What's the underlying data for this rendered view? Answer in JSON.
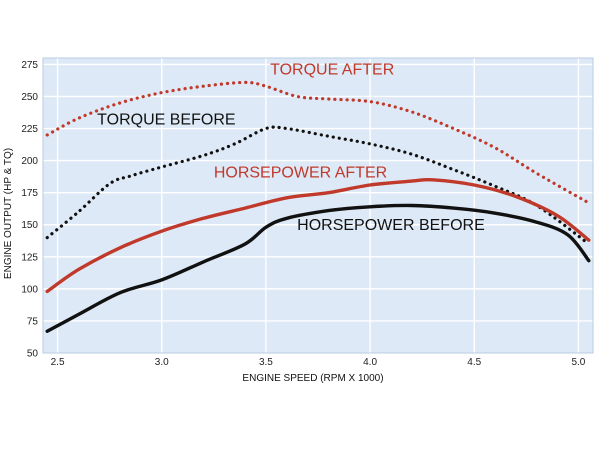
{
  "chart_data": {
    "type": "line",
    "xlabel": "ENGINE SPEED (RPM X 1000)",
    "ylabel": "ENGINE OUTPUT (HP & TQ)",
    "xlim": [
      2.43,
      5.07
    ],
    "ylim": [
      50,
      280
    ],
    "xticks": [
      2.5,
      3.0,
      3.5,
      4.0,
      4.5,
      5.0
    ],
    "xtick_labels": [
      "2.5",
      "3.0",
      "3.5",
      "4.0",
      "4.5",
      "5.0"
    ],
    "yticks": [
      50,
      75,
      100,
      125,
      150,
      175,
      200,
      225,
      250,
      275
    ],
    "ytick_labels": [
      "50",
      "75",
      "100",
      "125",
      "150",
      "175",
      "200",
      "225",
      "250",
      "275"
    ],
    "grid": true,
    "background": "#dde9f6",
    "series": [
      {
        "name": "TORQUE AFTER",
        "color": "#c0392b",
        "style": "dotted",
        "points": [
          [
            2.45,
            220
          ],
          [
            2.6,
            233
          ],
          [
            2.8,
            245
          ],
          [
            3.0,
            253
          ],
          [
            3.2,
            258
          ],
          [
            3.4,
            261
          ],
          [
            3.5,
            258
          ],
          [
            3.65,
            250
          ],
          [
            3.8,
            248
          ],
          [
            4.0,
            246
          ],
          [
            4.2,
            238
          ],
          [
            4.4,
            225
          ],
          [
            4.6,
            210
          ],
          [
            4.8,
            190
          ],
          [
            5.05,
            167
          ]
        ]
      },
      {
        "name": "TORQUE BEFORE",
        "color": "#111111",
        "style": "dotted",
        "points": [
          [
            2.45,
            140
          ],
          [
            2.6,
            160
          ],
          [
            2.75,
            182
          ],
          [
            2.85,
            188
          ],
          [
            3.0,
            195
          ],
          [
            3.2,
            204
          ],
          [
            3.35,
            213
          ],
          [
            3.5,
            225
          ],
          [
            3.6,
            225
          ],
          [
            3.8,
            219
          ],
          [
            4.0,
            213
          ],
          [
            4.2,
            205
          ],
          [
            4.4,
            193
          ],
          [
            4.6,
            180
          ],
          [
            4.8,
            165
          ],
          [
            5.05,
            135
          ]
        ]
      },
      {
        "name": "HORSEPOWER AFTER",
        "color": "#c0392b",
        "style": "solid",
        "points": [
          [
            2.45,
            98
          ],
          [
            2.6,
            115
          ],
          [
            2.8,
            132
          ],
          [
            3.0,
            145
          ],
          [
            3.2,
            155
          ],
          [
            3.4,
            163
          ],
          [
            3.6,
            171
          ],
          [
            3.8,
            175
          ],
          [
            4.0,
            181
          ],
          [
            4.2,
            184
          ],
          [
            4.3,
            185
          ],
          [
            4.5,
            181
          ],
          [
            4.7,
            172
          ],
          [
            4.9,
            157
          ],
          [
            5.05,
            138
          ]
        ]
      },
      {
        "name": "HORSEPOWER BEFORE",
        "color": "#111111",
        "style": "solid",
        "points": [
          [
            2.45,
            67
          ],
          [
            2.6,
            80
          ],
          [
            2.8,
            97
          ],
          [
            3.0,
            107
          ],
          [
            3.2,
            121
          ],
          [
            3.4,
            135
          ],
          [
            3.5,
            148
          ],
          [
            3.6,
            155
          ],
          [
            3.8,
            161
          ],
          [
            4.0,
            164
          ],
          [
            4.2,
            165
          ],
          [
            4.4,
            163
          ],
          [
            4.6,
            159
          ],
          [
            4.8,
            152
          ],
          [
            4.95,
            142
          ],
          [
            5.05,
            122
          ]
        ]
      }
    ],
    "labels": [
      {
        "text": "TORQUE AFTER",
        "color": "#c0392b",
        "anchor_x": 3.52,
        "anchor_y": 267
      },
      {
        "text": "TORQUE BEFORE",
        "color": "#111111",
        "anchor_x": 2.69,
        "anchor_y": 228
      },
      {
        "text": "HORSEPOWER AFTER",
        "color": "#c0392b",
        "anchor_x": 3.25,
        "anchor_y": 187
      },
      {
        "text": "HORSEPOWER BEFORE",
        "color": "#111111",
        "anchor_x": 3.65,
        "anchor_y": 146
      }
    ]
  }
}
